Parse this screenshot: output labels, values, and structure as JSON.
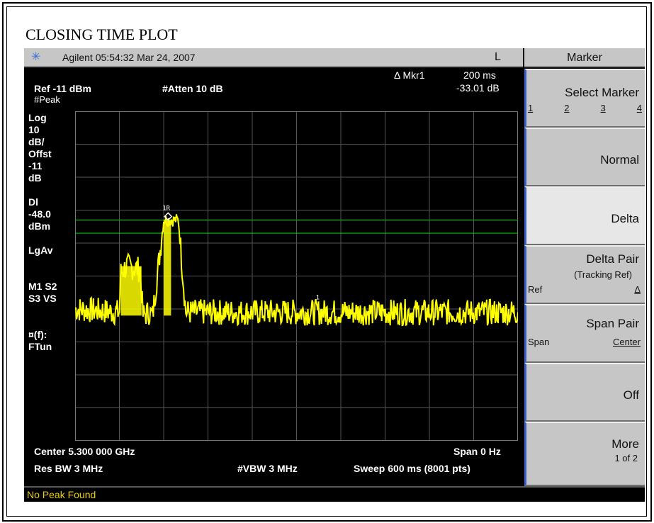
{
  "document": {
    "title": "CLOSING TIME PLOT"
  },
  "header": {
    "logo_icon": "agilent-spark-icon",
    "brand": "Agilent 05:54:32  Mar 24, 2007",
    "status_letter": "L",
    "menu_title": "Marker"
  },
  "readout": {
    "marker_label": "Δ Mkr1",
    "marker_x": "200 ms",
    "marker_y": "-33.01 dB",
    "ref": "Ref -11 dBm",
    "atten": "#Atten 10 dB"
  },
  "left_annotations": {
    "peak": "#Peak",
    "lines": [
      "Log",
      "10",
      "dB/",
      "Offst",
      "-11",
      "dB",
      "",
      "Dl",
      "-48.0",
      "dBm",
      "",
      "LgAv",
      "",
      "",
      "M1  S2",
      "S3  VS",
      "",
      "",
      "¤(f):",
      "FTun"
    ]
  },
  "bottom": {
    "center": "Center 5.300 000 GHz",
    "span": "Span 0 Hz",
    "rbw": "Res BW 3 MHz",
    "vbw": "#VBW 3 MHz",
    "sweep": "Sweep 600 ms (8001 pts)"
  },
  "markers": {
    "ref_label": "1R",
    "delta_label": "1"
  },
  "softkeys": {
    "select_marker": {
      "label": "Select Marker",
      "options": [
        "1",
        "2",
        "3",
        "4"
      ]
    },
    "normal": "Normal",
    "delta": "Delta",
    "delta_pair": {
      "label": "Delta Pair",
      "sub": "(Tracking Ref)",
      "left": "Ref",
      "right": "Δ"
    },
    "span_pair": {
      "label": "Span Pair",
      "left": "Span",
      "right": "Center"
    },
    "off": "Off",
    "more": {
      "label": "More",
      "sub": "1 of 2"
    }
  },
  "status_message": "No Peak Found",
  "colors": {
    "trace": "#ffff00",
    "display_line": "#00c800",
    "grid": "#555555",
    "softkey_bg": "#c6c6c6",
    "status_text": "#e8d000"
  },
  "chart_data": {
    "type": "line",
    "x_unit": "ms",
    "xlim": [
      0,
      600
    ],
    "ylim": [
      -11,
      -111
    ],
    "y_scale": "10 dB/div log",
    "grid": true,
    "display_line_dbm": -48.0,
    "series": [
      {
        "x": [
          0,
          60,
          62,
          70,
          88,
          92,
          100,
          105,
          120,
          122,
          140,
          150,
          300,
          450,
          600
        ],
        "y": [
          -71,
          -72,
          -60,
          -58,
          -59,
          -73,
          -72,
          -73,
          -44,
          -44,
          -44,
          -72,
          -72,
          -72,
          -72
        ]
      }
    ]
  }
}
